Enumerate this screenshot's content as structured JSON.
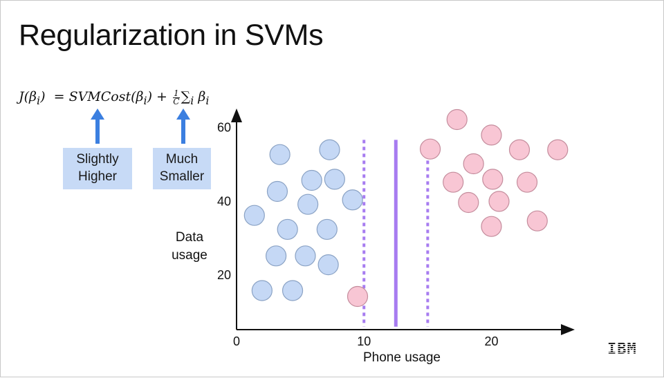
{
  "slide": {
    "title": "Regularization in SVMs",
    "formula": {
      "lhs": "J(β",
      "lhs_sub": "i",
      "lhs_close": ")",
      "eq": "=",
      "cost": "SVMCost(β",
      "cost_sub": "i",
      "cost_close": ")",
      "plus": "+",
      "frac_num": "1",
      "frac_den": "C",
      "sum": "∑",
      "sum_sub": "i",
      "beta": "β",
      "beta_sub": "i"
    },
    "annotations": [
      {
        "line1": "Slightly",
        "line2": "Higher"
      },
      {
        "line1": "Much",
        "line2": "Smaller"
      }
    ],
    "arrow_color": "#3b7fe0",
    "box_color": "#c7daf6",
    "logo": "IBM"
  },
  "chart_data": {
    "type": "scatter",
    "xlabel": "Phone usage",
    "ylabel_lines": [
      "Data",
      "usage"
    ],
    "xlim": [
      0,
      26
    ],
    "ylim": [
      5,
      62
    ],
    "xticks": [
      0,
      10,
      20
    ],
    "yticks": [
      20,
      40,
      60
    ],
    "grid": false,
    "series": [
      {
        "color": "#c5d8f5",
        "stroke": "#8aa2c4",
        "points": [
          [
            3.4,
            52.5
          ],
          [
            7.3,
            53.8
          ],
          [
            5.9,
            45.5
          ],
          [
            7.7,
            45.8
          ],
          [
            3.2,
            42.5
          ],
          [
            9.1,
            40.2
          ],
          [
            5.6,
            39.0
          ],
          [
            1.4,
            36.0
          ],
          [
            4.0,
            32.2
          ],
          [
            7.1,
            32.2
          ],
          [
            3.1,
            25.0
          ],
          [
            5.4,
            25.0
          ],
          [
            7.2,
            22.6
          ],
          [
            2.0,
            15.6
          ],
          [
            4.4,
            15.6
          ]
        ]
      },
      {
        "color": "#f8c6d4",
        "stroke": "#c48c9c",
        "points": [
          [
            17.3,
            62.0
          ],
          [
            20.0,
            57.8
          ],
          [
            15.2,
            54.0
          ],
          [
            22.2,
            53.8
          ],
          [
            25.2,
            53.8
          ],
          [
            18.6,
            50.0
          ],
          [
            17.0,
            45.0
          ],
          [
            20.1,
            45.8
          ],
          [
            22.8,
            45.0
          ],
          [
            18.2,
            39.5
          ],
          [
            20.6,
            39.8
          ],
          [
            20.0,
            33.0
          ],
          [
            23.6,
            34.5
          ],
          [
            9.5,
            14.0
          ]
        ]
      }
    ],
    "decision_boundary": {
      "x": 12.5,
      "color": "#a77cf0"
    },
    "margins": {
      "x": [
        10.0,
        15.0
      ],
      "color": "#a77cf0"
    }
  }
}
